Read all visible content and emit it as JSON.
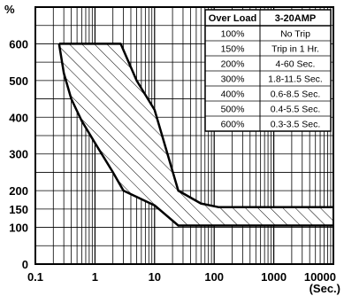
{
  "chart_data": {
    "type": "line",
    "x_scale": "log",
    "xlim": [
      0.1,
      10000
    ],
    "ylim": [
      0,
      700
    ],
    "x_ticks": [
      0.1,
      1,
      10,
      100,
      1000,
      10000
    ],
    "x_tick_labels": [
      "0.1",
      "1",
      "10",
      "100",
      "1000",
      "10000"
    ],
    "y_ticks": [
      0,
      100,
      150,
      200,
      300,
      400,
      500,
      600
    ],
    "y_tick_labels": [
      "0",
      "100",
      "150",
      "200",
      "300",
      "400",
      "500",
      "600"
    ],
    "y_unit": "%",
    "x_unit": "(Sec.)",
    "grid": true,
    "fill": "hatched",
    "series": [
      {
        "x": [
          0.25,
          0.3,
          0.4,
          0.6,
          1,
          2,
          3,
          10,
          25,
          60,
          10000
        ],
        "y": [
          600,
          520,
          450,
          390,
          330,
          250,
          200,
          160,
          105,
          105,
          105
        ]
      },
      {
        "x": [
          0.25,
          2.7,
          5,
          10,
          25,
          60,
          120,
          10000
        ],
        "y": [
          600,
          600,
          500,
          420,
          200,
          165,
          155,
          155
        ]
      }
    ],
    "table": {
      "headers": [
        "Over Load",
        "3-20AMP"
      ],
      "rows": [
        [
          "100%",
          "No Trip"
        ],
        [
          "150%",
          "Trip in 1 Hr."
        ],
        [
          "200%",
          "4-60 Sec."
        ],
        [
          "300%",
          "1.8-11.5 Sec."
        ],
        [
          "400%",
          "0.6-8.5 Sec."
        ],
        [
          "500%",
          "0.4-5.5 Sec."
        ],
        [
          "600%",
          "0.3-3.5 Sec."
        ]
      ]
    }
  }
}
